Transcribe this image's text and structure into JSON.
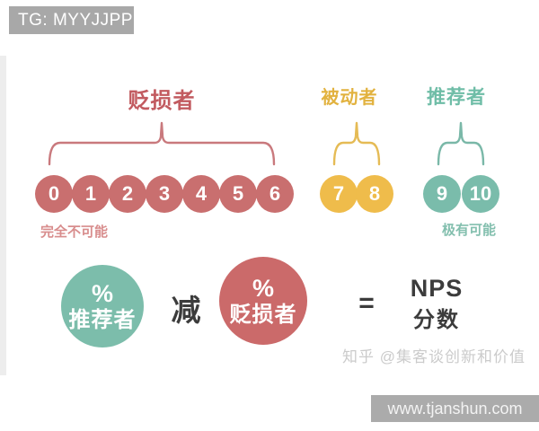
{
  "badges": {
    "top": "TG: MYYJJPP",
    "bottom": "www.tjanshun.com"
  },
  "watermark": "知乎 @集客谈创新和价值",
  "diagram": {
    "groups": [
      {
        "id": "detractors",
        "label": "贬损者",
        "scores": [
          "0",
          "1",
          "2",
          "3",
          "4",
          "5",
          "6"
        ],
        "circle_color": "#c96f6f",
        "label_color": "#c25b60",
        "brace_color": "#c9797d"
      },
      {
        "id": "passives",
        "label": "被动者",
        "scores": [
          "7",
          "8"
        ],
        "circle_color": "#efbc4b",
        "label_color": "#e2b23f",
        "brace_color": "#e5bb55"
      },
      {
        "id": "promoters",
        "label": "推荐者",
        "scores": [
          "9",
          "10"
        ],
        "circle_color": "#7abcab",
        "label_color": "#6fbda7",
        "brace_color": "#7ab8a8"
      }
    ],
    "scale": {
      "left_label": "完全不可能",
      "right_label": "极有可能"
    },
    "formula": {
      "promoter": {
        "line1": "%",
        "line2": "推荐者",
        "color": "#7cbdab"
      },
      "operator_minus": "减",
      "detractor": {
        "line1": "%",
        "line2": "贬损者",
        "color": "#cb6a6a"
      },
      "operator_equals": "=",
      "result_line1": "NPS",
      "result_line2": "分数"
    }
  }
}
